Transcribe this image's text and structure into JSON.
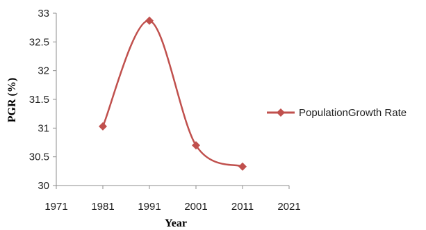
{
  "chart_data": {
    "type": "line",
    "x": [
      1981,
      1991,
      2001,
      2011
    ],
    "series": [
      {
        "name": "PopulationGrowth Rate",
        "values": [
          31.03,
          32.87,
          30.7,
          30.33
        ]
      }
    ],
    "xlabel": "Year",
    "ylabel": "PGR (%)",
    "xlim": [
      1971,
      2021
    ],
    "ylim": [
      30,
      33
    ],
    "x_ticks": [
      "1971",
      "1981",
      "1991",
      "2001",
      "2011",
      "2021"
    ],
    "y_ticks": [
      "30",
      "30.5",
      "31",
      "31.5",
      "32",
      "32.5",
      "33"
    ],
    "smooth": true,
    "marker": "diamond",
    "grid": false,
    "legend_position": "right",
    "series_color": "#c0504d",
    "axis_color": "#8c8c8c"
  }
}
